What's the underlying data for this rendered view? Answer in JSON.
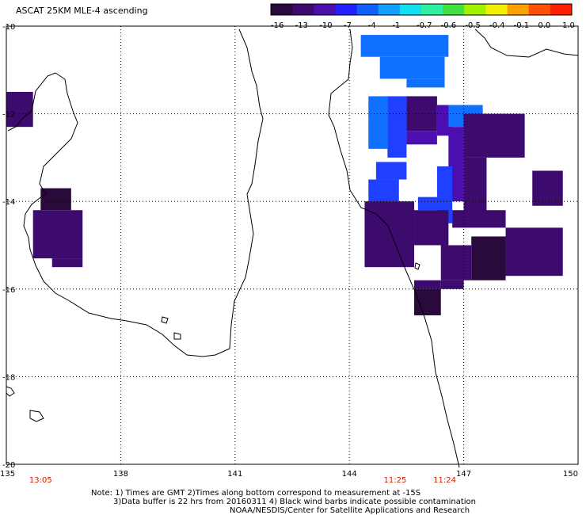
{
  "chart_data": {
    "type": "heatmap",
    "title": "ASCAT 25KM MLE-4 ascending",
    "x_axis": {
      "range": [
        135,
        150
      ],
      "ticks": [
        "135",
        "138",
        "141",
        "144",
        "147",
        "150"
      ],
      "unit": "longitude"
    },
    "y_axis": {
      "range": [
        -20,
        -10
      ],
      "ticks": [
        "-10",
        "-12",
        "-14",
        "-16",
        "-18",
        "-20"
      ],
      "unit": "latitude"
    },
    "grid": "dotted",
    "colorbar": {
      "labels": [
        "-16",
        "-13",
        "-10",
        "-7",
        "-4",
        "-1",
        "-0.7",
        "-0.6",
        "-0.5",
        "-0.4",
        "-0.1",
        "0.0",
        "1.0"
      ],
      "colors": [
        "#2a0a3c",
        "#3d0a6e",
        "#4b0fb0",
        "#2020ff",
        "#1060ff",
        "#10a0ff",
        "#10e0f0",
        "#30f0a0",
        "#40e040",
        "#a0f000",
        "#f0f000",
        "#ffa000",
        "#ff5000",
        "#ff2000"
      ]
    },
    "cells": [
      {
        "lon0": 135.0,
        "lon1": 135.7,
        "lat0": -11.5,
        "lat1": -12.3,
        "value": -13
      },
      {
        "lon0": 135.9,
        "lon1": 136.7,
        "lat0": -13.7,
        "lat1": -14.2,
        "value": -16
      },
      {
        "lon0": 135.7,
        "lon1": 137.0,
        "lat0": -14.2,
        "lat1": -15.3,
        "value": -13
      },
      {
        "lon0": 136.2,
        "lon1": 137.0,
        "lat0": -15.3,
        "lat1": -15.5,
        "value": -13
      },
      {
        "lon0": 144.3,
        "lon1": 146.6,
        "lat0": -10.2,
        "lat1": -10.7,
        "value": -4
      },
      {
        "lon0": 144.8,
        "lon1": 146.5,
        "lat0": -10.7,
        "lat1": -11.2,
        "value": -4
      },
      {
        "lon0": 145.5,
        "lon1": 146.5,
        "lat0": -11.2,
        "lat1": -11.4,
        "value": -4
      },
      {
        "lon0": 144.5,
        "lon1": 145.0,
        "lat0": -11.6,
        "lat1": -12.8,
        "value": -4
      },
      {
        "lon0": 145.0,
        "lon1": 145.5,
        "lat0": -11.6,
        "lat1": -13.0,
        "value": -7
      },
      {
        "lon0": 145.5,
        "lon1": 146.3,
        "lat0": -11.6,
        "lat1": -12.4,
        "value": -13
      },
      {
        "lon0": 146.3,
        "lon1": 146.7,
        "lat0": -11.8,
        "lat1": -12.5,
        "value": -10
      },
      {
        "lon0": 145.5,
        "lon1": 146.3,
        "lat0": -12.4,
        "lat1": -12.7,
        "value": -10
      },
      {
        "lon0": 146.6,
        "lon1": 147.5,
        "lat0": -11.8,
        "lat1": -12.3,
        "value": -4
      },
      {
        "lon0": 147.0,
        "lon1": 148.6,
        "lat0": -12.0,
        "lat1": -13.0,
        "value": -13
      },
      {
        "lon0": 146.6,
        "lon1": 147.0,
        "lat0": -12.3,
        "lat1": -14.0,
        "value": -10
      },
      {
        "lon0": 147.0,
        "lon1": 147.6,
        "lat0": -13.0,
        "lat1": -14.3,
        "value": -13
      },
      {
        "lon0": 144.7,
        "lon1": 145.5,
        "lat0": -13.1,
        "lat1": -13.5,
        "value": -7
      },
      {
        "lon0": 146.3,
        "lon1": 146.7,
        "lat0": -13.2,
        "lat1": -14.5,
        "value": -7
      },
      {
        "lon0": 144.5,
        "lon1": 145.3,
        "lat0": -13.5,
        "lat1": -14.0,
        "value": -7
      },
      {
        "lon0": 144.5,
        "lon1": 145.0,
        "lat0": -14.0,
        "lat1": -14.3,
        "value": -7
      },
      {
        "lon0": 145.8,
        "lon1": 146.6,
        "lat0": -13.9,
        "lat1": -14.2,
        "value": -7
      },
      {
        "lon0": 144.4,
        "lon1": 145.7,
        "lat0": -14.0,
        "lat1": -15.5,
        "value": -13
      },
      {
        "lon0": 145.7,
        "lon1": 146.6,
        "lat0": -14.2,
        "lat1": -15.0,
        "value": -13
      },
      {
        "lon0": 146.7,
        "lon1": 148.1,
        "lat0": -14.2,
        "lat1": -14.6,
        "value": -13
      },
      {
        "lon0": 148.8,
        "lon1": 149.6,
        "lat0": -13.3,
        "lat1": -14.1,
        "value": -13
      },
      {
        "lon0": 148.1,
        "lon1": 149.6,
        "lat0": -14.6,
        "lat1": -15.7,
        "value": -13
      },
      {
        "lon0": 147.2,
        "lon1": 148.1,
        "lat0": -14.8,
        "lat1": -15.8,
        "value": -16
      },
      {
        "lon0": 146.4,
        "lon1": 147.2,
        "lat0": -15.0,
        "lat1": -15.8,
        "value": -13
      },
      {
        "lon0": 146.4,
        "lon1": 147.0,
        "lat0": -15.8,
        "lat1": -16.0,
        "value": -13
      },
      {
        "lon0": 145.7,
        "lon1": 146.4,
        "lat0": -15.8,
        "lat1": -16.0,
        "value": -13
      },
      {
        "lon0": 145.7,
        "lon1": 146.4,
        "lat0": -16.0,
        "lat1": -16.6,
        "value": -16
      }
    ],
    "time_labels": [
      {
        "lon": 135.9,
        "text": "13:05"
      },
      {
        "lon": 145.2,
        "text": "11:25"
      },
      {
        "lon": 146.5,
        "text": "11:24"
      }
    ],
    "notes": [
      "Note: 1) Times are GMT 2)Times along bottom correspond to measurement at -15S",
      "3)Data buffer is 22 hrs from 20160311 4) Black wind barbs indicate possible contamination",
      "NOAA/NESDIS/Center for Satellite Applications and Research"
    ]
  }
}
